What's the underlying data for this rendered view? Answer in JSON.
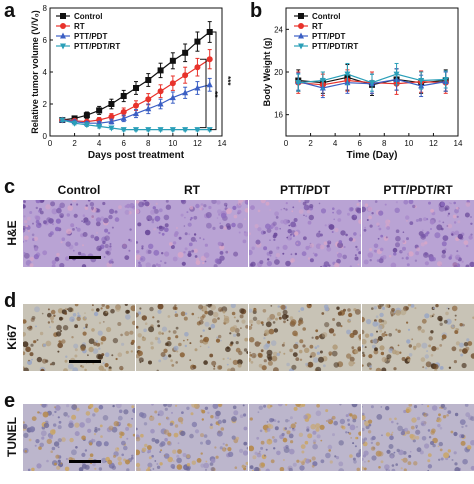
{
  "panels": {
    "a": "a",
    "b": "b",
    "c": "c",
    "d": "d",
    "e": "e"
  },
  "chart_data": [
    {
      "type": "line",
      "panel": "a",
      "xlabel": "Days post treatment",
      "ylabel": "Relative tumor volume (V/V₀)",
      "xlim": [
        0,
        14
      ],
      "ylim": [
        0,
        8
      ],
      "x_ticks": [
        0,
        2,
        4,
        6,
        8,
        10,
        12,
        14
      ],
      "y_ticks": [
        0,
        2,
        4,
        6,
        8
      ],
      "x": [
        1,
        2,
        3,
        4,
        5,
        6,
        7,
        8,
        9,
        10,
        11,
        12,
        13
      ],
      "series": [
        {
          "name": "Control",
          "color": "#111111",
          "marker": "square",
          "values": [
            1.0,
            1.1,
            1.3,
            1.6,
            2.0,
            2.5,
            3.0,
            3.5,
            4.1,
            4.7,
            5.2,
            5.9,
            6.5
          ],
          "err": [
            0.1,
            0.15,
            0.2,
            0.25,
            0.3,
            0.35,
            0.4,
            0.4,
            0.45,
            0.5,
            0.55,
            0.6,
            0.65
          ]
        },
        {
          "name": "RT",
          "color": "#e8322b",
          "marker": "circle",
          "values": [
            1.0,
            0.95,
            0.9,
            1.0,
            1.2,
            1.5,
            1.9,
            2.3,
            2.8,
            3.3,
            3.8,
            4.3,
            4.8
          ],
          "err": [
            0.1,
            0.1,
            0.1,
            0.15,
            0.2,
            0.25,
            0.3,
            0.35,
            0.4,
            0.45,
            0.5,
            0.55,
            0.6
          ]
        },
        {
          "name": "PTT/PDT",
          "color": "#3b5fc4",
          "marker": "triangle-up",
          "values": [
            1.0,
            0.9,
            0.8,
            0.8,
            0.9,
            1.1,
            1.4,
            1.7,
            2.0,
            2.4,
            2.7,
            3.0,
            3.2
          ],
          "err": [
            0.1,
            0.1,
            0.1,
            0.1,
            0.15,
            0.2,
            0.25,
            0.3,
            0.3,
            0.35,
            0.35,
            0.4,
            0.4
          ]
        },
        {
          "name": "PTT/PDT/RT",
          "color": "#2a9fb8",
          "marker": "triangle-down",
          "values": [
            1.0,
            0.8,
            0.7,
            0.6,
            0.5,
            0.4,
            0.4,
            0.4,
            0.4,
            0.4,
            0.4,
            0.4,
            0.4
          ],
          "err": [
            0.1,
            0.1,
            0.1,
            0.1,
            0.08,
            0.08,
            0.08,
            0.08,
            0.08,
            0.08,
            0.08,
            0.08,
            0.08
          ]
        }
      ],
      "significance": [
        "***",
        "**"
      ],
      "legend": "top-left"
    },
    {
      "type": "line",
      "panel": "b",
      "xlabel": "Time (Day)",
      "ylabel": "Body Weight (g)",
      "xlim": [
        0,
        14
      ],
      "ylim": [
        14,
        26
      ],
      "x_ticks": [
        0,
        2,
        4,
        6,
        8,
        10,
        12,
        14
      ],
      "y_ticks": [
        16,
        20,
        24
      ],
      "x": [
        1,
        3,
        5,
        7,
        9,
        11,
        13
      ],
      "series": [
        {
          "name": "Control",
          "color": "#111111",
          "marker": "square",
          "values": [
            19.2,
            19.0,
            19.5,
            18.8,
            19.3,
            19.0,
            19.2
          ],
          "err": [
            1.0,
            1.0,
            1.2,
            1.0,
            1.0,
            1.0,
            1.0
          ]
        },
        {
          "name": "RT",
          "color": "#e8322b",
          "marker": "circle",
          "values": [
            19.0,
            18.8,
            19.2,
            19.0,
            18.9,
            19.1,
            19.0
          ],
          "err": [
            1.0,
            1.0,
            1.0,
            1.0,
            1.0,
            1.0,
            1.0
          ]
        },
        {
          "name": "PTT/PDT",
          "color": "#3b5fc4",
          "marker": "triangle-up",
          "values": [
            19.1,
            18.5,
            19.0,
            18.9,
            19.3,
            18.7,
            19.1
          ],
          "err": [
            0.8,
            0.9,
            1.0,
            0.9,
            1.0,
            1.0,
            0.9
          ]
        },
        {
          "name": "PTT/PDT/RT",
          "color": "#2a9fb8",
          "marker": "triangle-down",
          "values": [
            19.0,
            19.2,
            19.8,
            19.0,
            19.8,
            19.2,
            19.3
          ],
          "err": [
            0.8,
            0.8,
            1.0,
            0.8,
            1.0,
            0.8,
            0.8
          ]
        }
      ],
      "legend": "top-left"
    }
  ],
  "histology": {
    "columns": [
      "Control",
      "RT",
      "PTT/PDT",
      "PTT/PDT/RT"
    ],
    "rows": [
      {
        "label": "H&E",
        "stain": "he"
      },
      {
        "label": "Ki67",
        "stain": "ki67"
      },
      {
        "label": "TUNEL",
        "stain": "tunel"
      }
    ]
  },
  "colors": {
    "control": "#111111",
    "rt": "#e8322b",
    "pttpdt": "#3b5fc4",
    "pttpdtrt": "#2a9fb8"
  }
}
